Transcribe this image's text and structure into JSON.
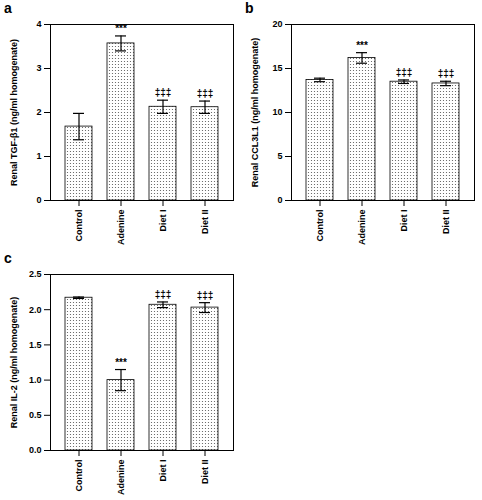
{
  "chart_data": [
    {
      "type": "bar",
      "title": "a",
      "y_label": "Renal TGF-β1 (ng/ml homogenate)",
      "categories": [
        "Control",
        "Adenine",
        "Diet I",
        "Diet II"
      ],
      "values": [
        1.68,
        3.57,
        2.13,
        2.12
      ],
      "errors": [
        0.3,
        0.17,
        0.15,
        0.14
      ],
      "annotations": [
        null,
        "***",
        "‡‡‡",
        "‡‡‡"
      ],
      "color": "#555555",
      "ylim": [
        0,
        4
      ],
      "yticks": [
        0,
        1,
        2,
        3,
        4
      ],
      "grid": false
    },
    {
      "type": "bar",
      "title": "b",
      "y_label": "Renal CCL3L1 (ng/ml homogenate)",
      "categories": [
        "Control",
        "Adenine",
        "Diet I",
        "Diet II"
      ],
      "values": [
        13.7,
        16.2,
        13.5,
        13.3
      ],
      "errors": [
        0.2,
        0.6,
        0.2,
        0.25
      ],
      "annotations": [
        null,
        "***",
        "‡‡‡",
        "‡‡‡"
      ],
      "color": "#555555",
      "ylim": [
        0,
        20
      ],
      "yticks": [
        0,
        5,
        10,
        15,
        20
      ],
      "grid": false
    },
    {
      "type": "bar",
      "title": "c",
      "y_label": "Renal IL-2 (ng/ml homogenate)",
      "categories": [
        "Control",
        "Adenine",
        "Diet I",
        "Diet II"
      ],
      "values": [
        2.17,
        1.0,
        2.07,
        2.03
      ],
      "errors": [
        0.01,
        0.15,
        0.04,
        0.07
      ],
      "annotations": [
        null,
        "***",
        "‡‡‡",
        "‡‡‡"
      ],
      "color": "#555555",
      "ylim": [
        0,
        2.5
      ],
      "yticks": [
        {
          "value": 0,
          "label": "0.0"
        },
        {
          "value": 0.5,
          "label": "0.5"
        },
        {
          "value": 1,
          "label": "1.0"
        },
        {
          "value": 1.5,
          "label": "1.5"
        },
        {
          "value": 2,
          "label": "2.0"
        },
        {
          "value": 2.5,
          "label": "2.5"
        }
      ],
      "grid": false
    }
  ]
}
